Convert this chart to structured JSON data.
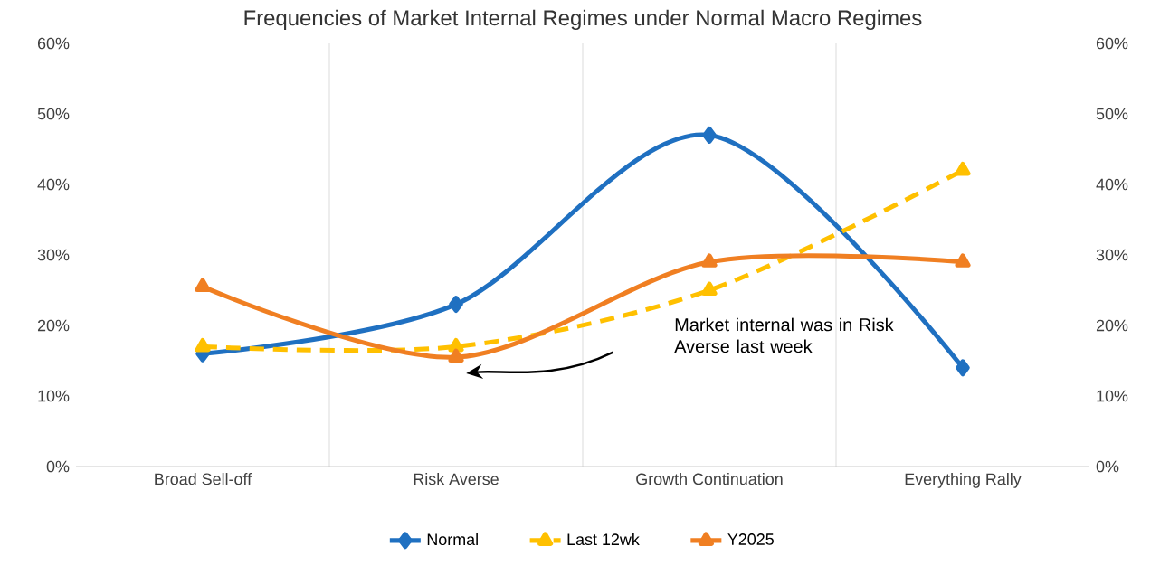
{
  "chart_data": {
    "type": "line",
    "title": "Frequencies of Market Internal Regimes under Normal Macro Regimes",
    "categories": [
      "Broad Sell-off",
      "Risk Averse",
      "Growth Continuation",
      "Everything Rally"
    ],
    "series": [
      {
        "name": "Normal",
        "color": "#1f70c1",
        "values": [
          16,
          23,
          47,
          14
        ],
        "marker": "diamond",
        "line_style": "solid"
      },
      {
        "name": "Last 12wk",
        "color": "#ffc000",
        "values": [
          17,
          17,
          25,
          42
        ],
        "marker": "triangle",
        "line_style": "dashed"
      },
      {
        "name": "Y2025",
        "color": "#f07f22",
        "values": [
          25.5,
          15.5,
          29,
          29
        ],
        "marker": "triangle",
        "line_style": "solid"
      }
    ],
    "ylim": [
      0,
      60
    ],
    "yticks": [
      {
        "value": 0,
        "label": "0%"
      },
      {
        "value": 10,
        "label": "10%"
      },
      {
        "value": 20,
        "label": "20%"
      },
      {
        "value": 30,
        "label": "30%"
      },
      {
        "value": 40,
        "label": "40%"
      },
      {
        "value": 50,
        "label": "50%"
      },
      {
        "value": 60,
        "label": "60%"
      }
    ],
    "y2lim": [
      0,
      60
    ],
    "y2ticks": [
      {
        "value": 0,
        "label": "0%"
      },
      {
        "value": 10,
        "label": "10%"
      },
      {
        "value": 20,
        "label": "20%"
      },
      {
        "value": 30,
        "label": "30%"
      },
      {
        "value": 40,
        "label": "40%"
      },
      {
        "value": 50,
        "label": "50%"
      },
      {
        "value": 60,
        "label": "60%"
      }
    ],
    "grid": "x",
    "legend": "bottom",
    "annotations": [
      "Market internal was in Risk Averse last week"
    ]
  }
}
